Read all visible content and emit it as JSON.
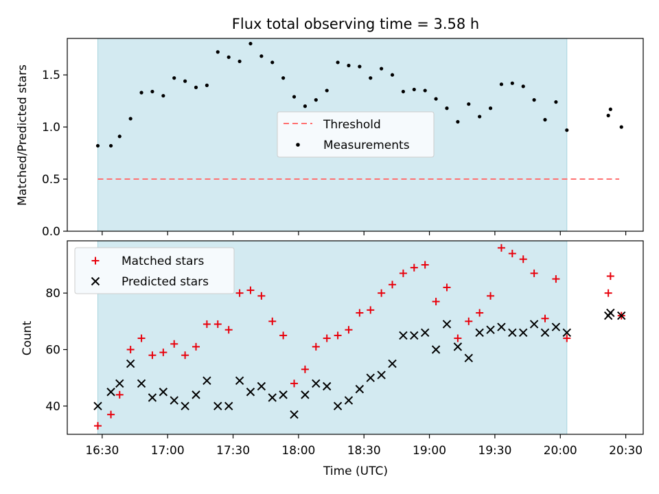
{
  "figure_title": "Flux total observing time = 3.58 h",
  "colors": {
    "span": "#d3eaf1",
    "span_edge": "#a8d4de",
    "threshold": "#ff7070",
    "matched": "#e8000b",
    "predicted": "#000000",
    "measurement": "#000000"
  },
  "chart_data": [
    {
      "type": "scatter",
      "ylabel": "Matched/Predicted stars",
      "xlim": [
        16.2333,
        20.6333
      ],
      "ylim": [
        0,
        1.85
      ],
      "yticks": [
        "0.0",
        "0.5",
        "1.0",
        "1.5"
      ],
      "highlight_span": [
        16.4667,
        20.05
      ],
      "threshold": {
        "name": "Threshold",
        "y": 0.5,
        "x": [
          16.4667,
          20.45
        ]
      },
      "series": [
        {
          "name": "Measurements",
          "x": [
            16.4667,
            16.5667,
            16.6333,
            16.7167,
            16.8,
            16.8833,
            16.9667,
            17.05,
            17.1333,
            17.2167,
            17.3,
            17.3833,
            17.4667,
            17.55,
            17.6333,
            17.7167,
            17.8,
            17.8833,
            17.9667,
            18.05,
            18.1333,
            18.2167,
            18.3,
            18.3833,
            18.4667,
            18.55,
            18.6333,
            18.7167,
            18.8,
            18.8833,
            18.9667,
            19.05,
            19.1333,
            19.2167,
            19.3,
            19.3833,
            19.4667,
            19.55,
            19.6333,
            19.7167,
            19.8,
            19.8833,
            19.9667,
            20.05,
            20.3667,
            20.3833,
            20.4667
          ],
          "y": [
            0.82,
            0.82,
            0.91,
            1.08,
            1.33,
            1.34,
            1.3,
            1.47,
            1.44,
            1.38,
            1.4,
            1.72,
            1.67,
            1.63,
            1.8,
            1.68,
            1.62,
            1.47,
            1.29,
            1.2,
            1.26,
            1.35,
            1.62,
            1.59,
            1.58,
            1.47,
            1.56,
            1.5,
            1.34,
            1.36,
            1.35,
            1.27,
            1.18,
            1.05,
            1.22,
            1.1,
            1.18,
            1.41,
            1.42,
            1.39,
            1.26,
            1.07,
            1.24,
            0.97,
            1.11,
            1.17,
            1.0
          ]
        }
      ]
    },
    {
      "type": "scatter",
      "xlabel": "Time (UTC)",
      "ylabel": "Count",
      "xlim": [
        16.2333,
        20.6333
      ],
      "ylim": [
        30,
        98.5
      ],
      "yticks": [
        "40",
        "60",
        "80"
      ],
      "xticks": [
        "16:30",
        "17:00",
        "17:30",
        "18:00",
        "18:30",
        "19:00",
        "19:30",
        "20:00",
        "20:30"
      ],
      "xtick_values": [
        16.5,
        17.0,
        17.5,
        18.0,
        18.5,
        19.0,
        19.5,
        20.0,
        20.5
      ],
      "highlight_span": [
        16.4667,
        20.05
      ],
      "legend_position": "top-left",
      "x": [
        16.4667,
        16.5667,
        16.6333,
        16.7167,
        16.8,
        16.8833,
        16.9667,
        17.05,
        17.1333,
        17.2167,
        17.3,
        17.3833,
        17.4667,
        17.55,
        17.6333,
        17.7167,
        17.8,
        17.8833,
        17.9667,
        18.05,
        18.1333,
        18.2167,
        18.3,
        18.3833,
        18.4667,
        18.55,
        18.6333,
        18.7167,
        18.8,
        18.8833,
        18.9667,
        19.05,
        19.1333,
        19.2167,
        19.3,
        19.3833,
        19.4667,
        19.55,
        19.6333,
        19.7167,
        19.8,
        19.8833,
        19.9667,
        20.05,
        20.3667,
        20.3833,
        20.4667
      ],
      "series": [
        {
          "name": "Matched stars",
          "marker": "plus",
          "values": [
            33,
            37,
            44,
            60,
            64,
            58,
            59,
            62,
            58,
            61,
            69,
            69,
            67,
            80,
            81,
            79,
            70,
            65,
            48,
            53,
            61,
            64,
            65,
            67,
            73,
            74,
            80,
            83,
            87,
            89,
            90,
            77,
            82,
            64,
            70,
            73,
            79,
            96,
            94,
            92,
            87,
            71,
            85,
            64,
            80,
            86,
            72
          ]
        },
        {
          "name": "Predicted stars",
          "marker": "x",
          "values": [
            40,
            45,
            48,
            55,
            48,
            43,
            45,
            42,
            40,
            44,
            49,
            40,
            40,
            49,
            45,
            47,
            43,
            44,
            37,
            44,
            48,
            47,
            40,
            42,
            46,
            50,
            51,
            55,
            65,
            65,
            66,
            60,
            69,
            61,
            57,
            66,
            67,
            68,
            66,
            66,
            69,
            66,
            68,
            66,
            72,
            73,
            72
          ]
        }
      ]
    }
  ]
}
